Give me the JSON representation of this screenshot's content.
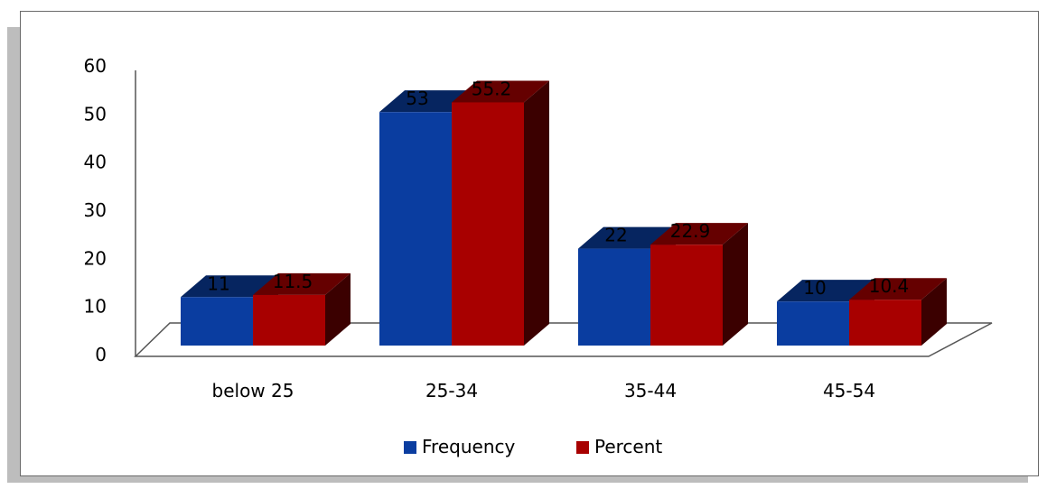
{
  "chart_data": {
    "type": "bar",
    "categories": [
      "below 25",
      "25-34",
      "35-44",
      "45-54"
    ],
    "series": [
      {
        "name": "Frequency",
        "values": [
          11,
          53,
          22,
          10
        ],
        "labels": [
          "11",
          "53",
          "22",
          "10"
        ],
        "color": "#0a3da0"
      },
      {
        "name": "Percent",
        "values": [
          11.5,
          55.2,
          22.9,
          10.4
        ],
        "labels": [
          "11.5",
          "55.2",
          "22.9",
          "10.4"
        ],
        "color": "#a80000"
      }
    ],
    "ylim": [
      0,
      60
    ],
    "yticks": [
      "0",
      "10",
      "20",
      "30",
      "40",
      "50",
      "60"
    ],
    "grid": false,
    "three_d": true,
    "legend_position": "bottom"
  }
}
